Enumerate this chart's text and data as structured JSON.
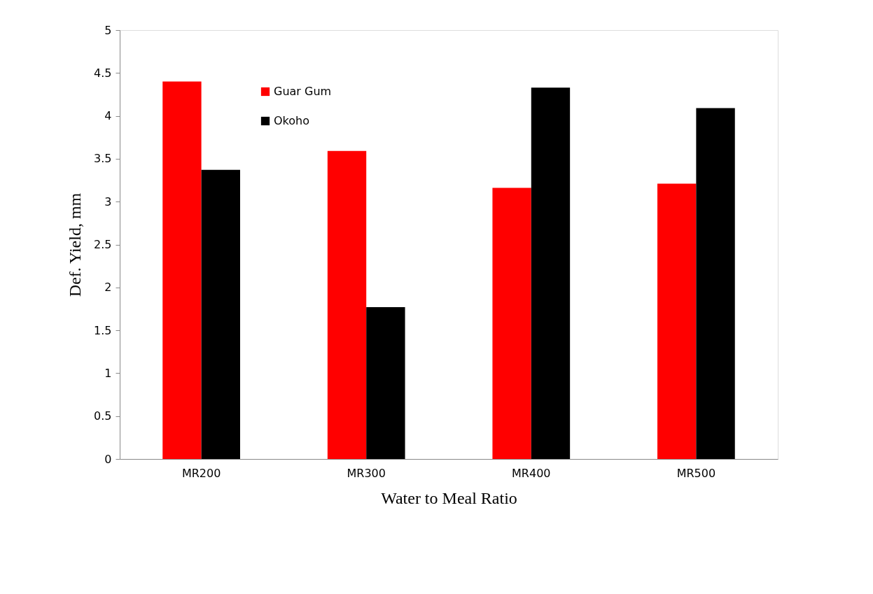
{
  "chart_data": {
    "type": "bar",
    "xlabel": "Water to Meal Ratio",
    "ylabel": "Def.  Yield, mm",
    "categories": [
      "MR200",
      "MR300",
      "MR400",
      "MR500"
    ],
    "series": [
      {
        "name": "Guar Gum",
        "color": "#ff0000",
        "values": [
          4.4,
          3.59,
          3.16,
          3.21
        ]
      },
      {
        "name": "Okoho",
        "color": "#000000",
        "values": [
          3.37,
          1.77,
          4.33,
          4.09
        ]
      }
    ],
    "ylim": [
      0,
      5
    ],
    "yticks": [
      0,
      0.5,
      1,
      1.5,
      2,
      2.5,
      3,
      3.5,
      4,
      4.5,
      5
    ],
    "grid": false,
    "legend": "top"
  }
}
